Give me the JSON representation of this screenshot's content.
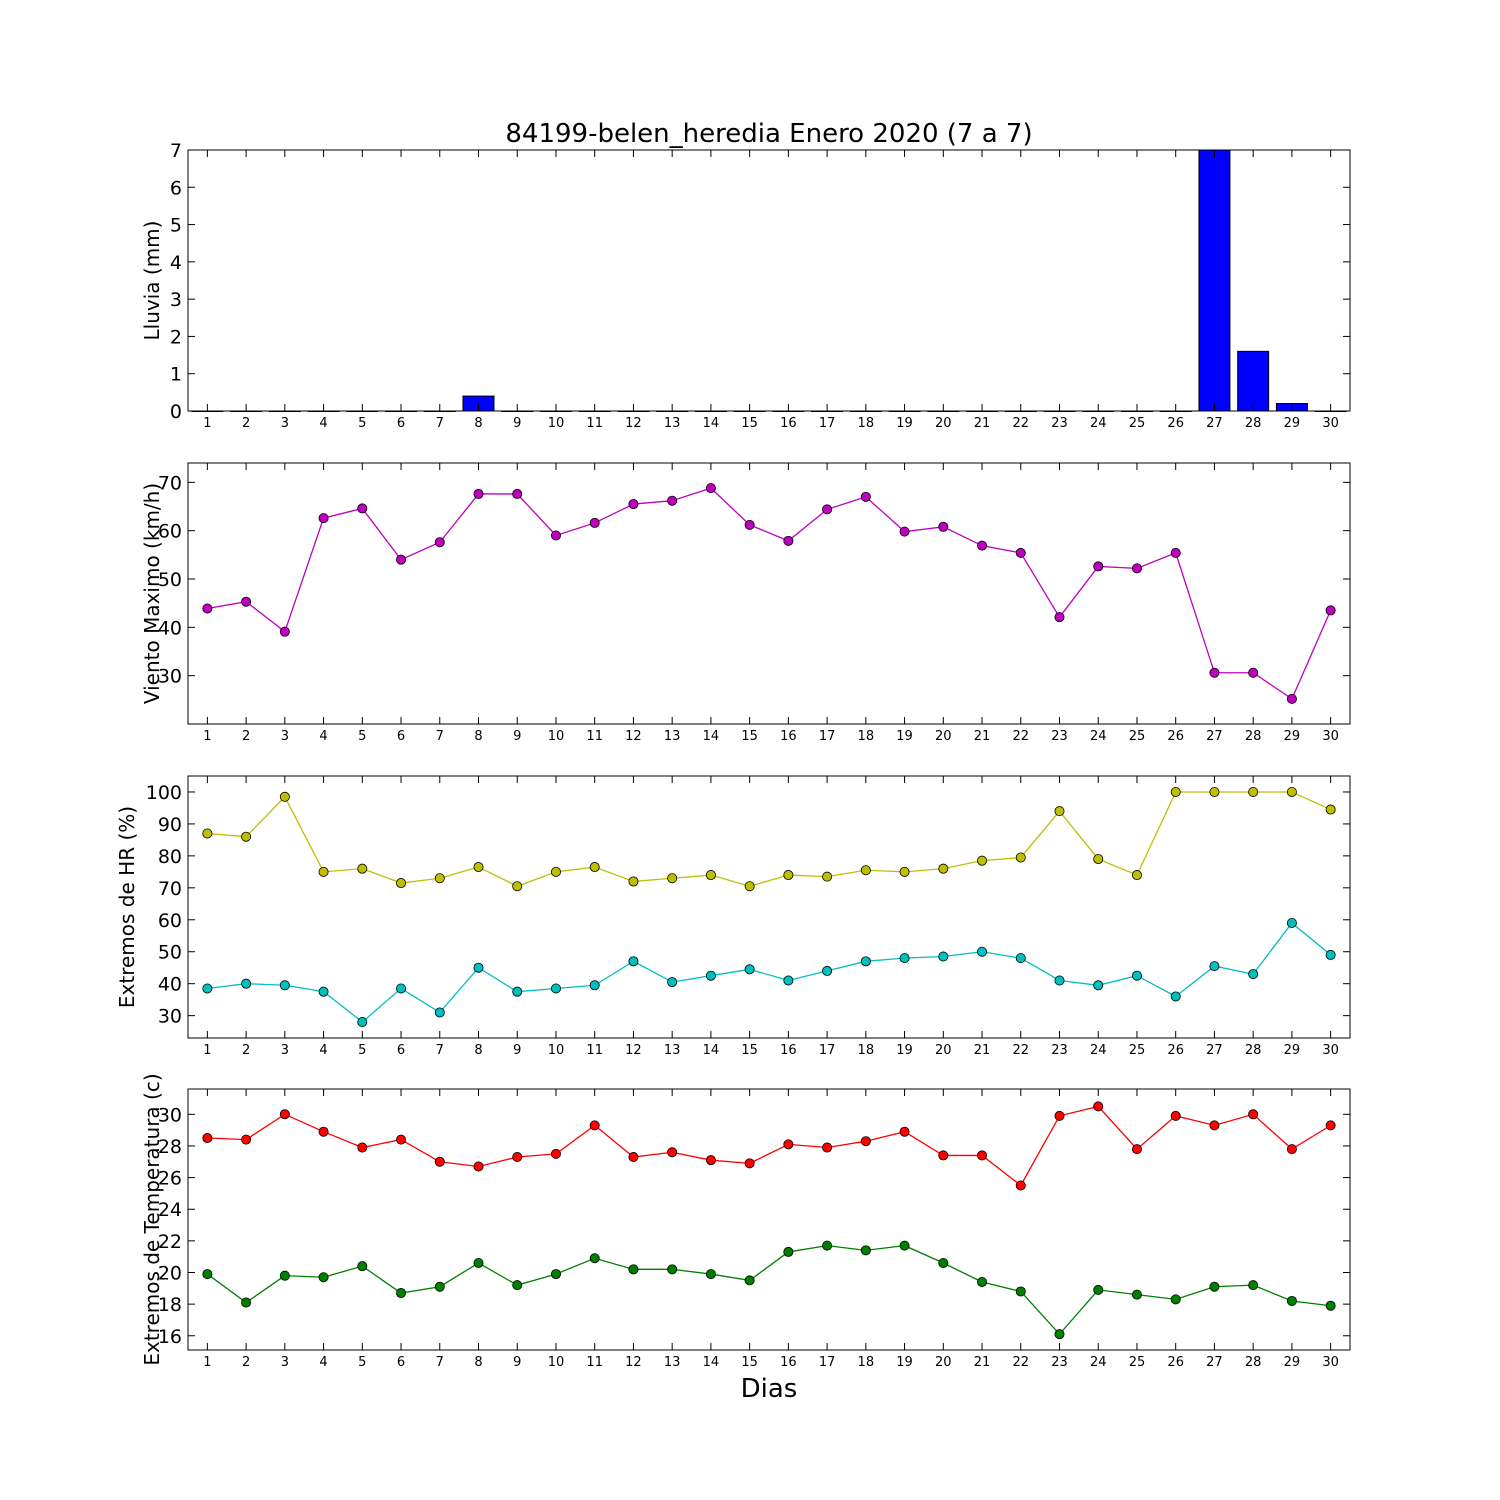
{
  "figure": {
    "title": "84199-belen_heredia Enero 2020  (7 a 7)",
    "xlabel": "Dias"
  },
  "chart_data": [
    {
      "type": "bar",
      "ylabel": "Lluvia (mm)",
      "x": [
        1,
        2,
        3,
        4,
        5,
        6,
        7,
        8,
        9,
        10,
        11,
        12,
        13,
        14,
        15,
        16,
        17,
        18,
        19,
        20,
        21,
        22,
        23,
        24,
        25,
        26,
        27,
        28,
        29,
        30
      ],
      "ylim": [
        0,
        7
      ],
      "yticks": [
        0,
        1,
        2,
        3,
        4,
        5,
        6,
        7
      ],
      "series": [
        {
          "color": "#0000ff",
          "values": [
            0,
            0,
            0,
            0,
            0,
            0,
            0,
            0.4,
            0,
            0,
            0,
            0,
            0,
            0,
            0,
            0,
            0,
            0,
            0,
            0,
            0,
            0,
            0,
            0,
            0,
            0,
            7.0,
            1.6,
            0.2,
            0
          ]
        }
      ]
    },
    {
      "type": "line",
      "ylabel": "Viento Maximo (km/h)",
      "x": [
        1,
        2,
        3,
        4,
        5,
        6,
        7,
        8,
        9,
        10,
        11,
        12,
        13,
        14,
        15,
        16,
        17,
        18,
        19,
        20,
        21,
        22,
        23,
        24,
        25,
        26,
        27,
        28,
        29,
        30
      ],
      "ylim": [
        20,
        74
      ],
      "yticks": [
        30,
        40,
        50,
        60,
        70
      ],
      "series": [
        {
          "color": "#bf00bf",
          "values": [
            43.9,
            45.3,
            39.1,
            62.6,
            64.6,
            54.0,
            57.6,
            67.6,
            67.6,
            59.0,
            61.6,
            65.5,
            66.2,
            68.8,
            61.2,
            57.9,
            64.4,
            67.0,
            59.8,
            60.8,
            56.9,
            55.4,
            42.1,
            52.6,
            52.2,
            55.4,
            30.6,
            30.6,
            25.2,
            43.5
          ]
        }
      ]
    },
    {
      "type": "line",
      "ylabel": "Extremos de HR (%)",
      "x": [
        1,
        2,
        3,
        4,
        5,
        6,
        7,
        8,
        9,
        10,
        11,
        12,
        13,
        14,
        15,
        16,
        17,
        18,
        19,
        20,
        21,
        22,
        23,
        24,
        25,
        26,
        27,
        28,
        29,
        30
      ],
      "ylim": [
        23,
        105
      ],
      "yticks": [
        30,
        40,
        50,
        60,
        70,
        80,
        90,
        100
      ],
      "series": [
        {
          "color": "#bfbf00",
          "values": [
            87,
            86,
            98.5,
            75,
            76,
            71.5,
            73,
            76.5,
            70.5,
            75,
            76.5,
            72,
            73,
            74,
            70.5,
            74,
            73.5,
            75.5,
            75,
            76,
            78.5,
            79.5,
            94,
            79,
            74,
            100,
            100,
            100,
            100,
            94.5
          ]
        },
        {
          "color": "#00bfbf",
          "values": [
            38.5,
            40,
            39.5,
            37.5,
            28,
            38.5,
            31,
            45,
            37.5,
            38.5,
            39.5,
            47,
            40.5,
            42.5,
            44.5,
            41,
            44,
            47,
            48,
            48.5,
            50,
            48,
            41,
            39.5,
            42.5,
            36,
            45.5,
            43,
            59,
            49
          ]
        }
      ]
    },
    {
      "type": "line",
      "ylabel": "Extremos de Temperatura (c)",
      "x": [
        1,
        2,
        3,
        4,
        5,
        6,
        7,
        8,
        9,
        10,
        11,
        12,
        13,
        14,
        15,
        16,
        17,
        18,
        19,
        20,
        21,
        22,
        23,
        24,
        25,
        26,
        27,
        28,
        29,
        30
      ],
      "ylim": [
        15.1,
        31.6
      ],
      "yticks": [
        16,
        18,
        20,
        22,
        24,
        26,
        28,
        30
      ],
      "series": [
        {
          "color": "#ff0000",
          "values": [
            28.5,
            28.4,
            30.0,
            28.9,
            27.9,
            28.4,
            27.0,
            26.7,
            27.3,
            27.5,
            29.3,
            27.3,
            27.6,
            27.1,
            26.9,
            28.1,
            27.9,
            28.3,
            28.9,
            27.4,
            27.4,
            25.5,
            29.9,
            30.5,
            27.8,
            29.9,
            29.3,
            30.0,
            27.8,
            29.3
          ]
        },
        {
          "color": "#008000",
          "values": [
            19.9,
            18.1,
            19.8,
            19.7,
            20.4,
            18.7,
            19.1,
            20.6,
            19.2,
            19.9,
            20.9,
            20.2,
            20.2,
            19.9,
            19.5,
            21.3,
            21.7,
            21.4,
            21.7,
            20.6,
            19.4,
            18.8,
            16.1,
            18.9,
            18.6,
            18.3,
            19.1,
            19.2,
            18.2,
            17.9
          ]
        }
      ]
    }
  ]
}
